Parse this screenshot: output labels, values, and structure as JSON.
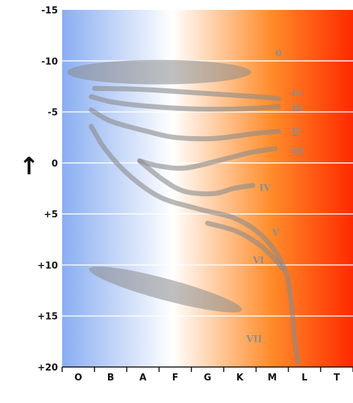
{
  "chart_data": {
    "type": "scatter",
    "title": "",
    "xlabel": "",
    "ylabel": "↑",
    "x_categories": [
      "O",
      "B",
      "A",
      "F",
      "G",
      "K",
      "M",
      "L",
      "T"
    ],
    "y_ticks": [
      {
        "value": -15,
        "label": "-15"
      },
      {
        "value": -10,
        "label": "-10"
      },
      {
        "value": -5,
        "label": "-5"
      },
      {
        "value": 0,
        "label": "0"
      },
      {
        "value": 5,
        "label": "+5"
      },
      {
        "value": 10,
        "label": "+10"
      },
      {
        "value": 15,
        "label": "+15"
      },
      {
        "value": 20,
        "label": "+20"
      }
    ],
    "ylim": [
      -15,
      20
    ],
    "y_inverted": true,
    "grid": true,
    "background_gradient": [
      "#8aaef2",
      "#ffffff",
      "#ff8c2a",
      "#ff2a00"
    ],
    "luminosity_classes": [
      {
        "name": "0",
        "shape": "band",
        "center": [
          2.5,
          -8.9
        ],
        "width": 5.7,
        "height": 2.4,
        "angle": 0,
        "label_pos": [
          6.1,
          -10.8
        ]
      },
      {
        "name": "Ia",
        "shape": "curve",
        "points": [
          [
            0.5,
            -7.3
          ],
          [
            2,
            -7.2
          ],
          [
            4,
            -6.8
          ],
          [
            5.5,
            -6.5
          ],
          [
            6.2,
            -6.3
          ]
        ],
        "label_pos": [
          6.6,
          -6.9
        ]
      },
      {
        "name": "Ib",
        "shape": "curve",
        "points": [
          [
            0.4,
            -6.5
          ],
          [
            1,
            -6
          ],
          [
            2,
            -5.6
          ],
          [
            3.5,
            -5.3
          ],
          [
            5,
            -5.3
          ],
          [
            6.2,
            -5.5
          ]
        ],
        "label_pos": [
          6.6,
          -5.4
        ]
      },
      {
        "name": "II",
        "shape": "curve",
        "points": [
          [
            0.4,
            -5.2
          ],
          [
            1,
            -4.1
          ],
          [
            2,
            -3.2
          ],
          [
            3,
            -2.5
          ],
          [
            4.2,
            -2.4
          ],
          [
            5.5,
            -2.9
          ],
          [
            6.2,
            -3.1
          ]
        ],
        "label_pos": [
          6.6,
          -3.1
        ]
      },
      {
        "name": "III",
        "shape": "curve",
        "points": [
          [
            1.9,
            -0.2
          ],
          [
            2.5,
            0.3
          ],
          [
            3.3,
            0.5
          ],
          [
            4.3,
            -0.2
          ],
          [
            5.3,
            -1
          ],
          [
            6.1,
            -1.4
          ]
        ],
        "label_pos": [
          6.6,
          -1.2
        ]
      },
      {
        "name": "IV",
        "shape": "curve",
        "points": [
          [
            1.9,
            -0.2
          ],
          [
            2.6,
            1.6
          ],
          [
            3.3,
            2.8
          ],
          [
            4.2,
            3
          ],
          [
            4.8,
            2.5
          ],
          [
            5.4,
            2.2
          ]
        ],
        "label_pos": [
          5.6,
          2.4
        ]
      },
      {
        "name": "V",
        "shape": "curve",
        "points": [
          [
            0.4,
            -3.6
          ],
          [
            0.8,
            -1.5
          ],
          [
            1.5,
            1
          ],
          [
            2.5,
            3.3
          ],
          [
            3.7,
            4.5
          ],
          [
            4.9,
            5.5
          ],
          [
            5.8,
            7.5
          ],
          [
            6.4,
            10.5
          ],
          [
            6.6,
            14
          ],
          [
            6.7,
            17.5
          ],
          [
            6.8,
            19.5
          ]
        ],
        "label_pos": [
          6,
          6.8
        ]
      },
      {
        "name": "VI",
        "shape": "curve",
        "points": [
          [
            4,
            5.9
          ],
          [
            4.9,
            6.7
          ],
          [
            5.6,
            8
          ],
          [
            6.1,
            9.5
          ],
          [
            6.3,
            10.3
          ]
        ],
        "label_pos": [
          5.4,
          9.5
        ]
      },
      {
        "name": "VII",
        "shape": "band",
        "center": [
          2.7,
          12.4
        ],
        "width": 4.9,
        "height": 2.1,
        "angle": 15,
        "label_pos": [
          5.2,
          17.2
        ]
      }
    ]
  }
}
